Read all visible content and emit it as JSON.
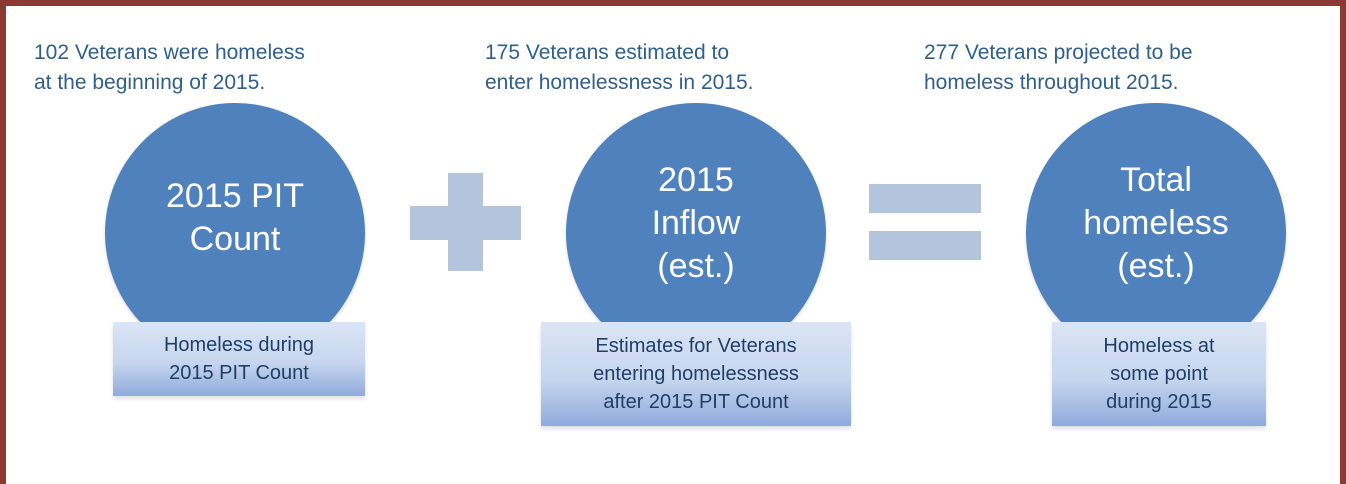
{
  "columns": [
    {
      "caption": "102 Veterans were homeless\nat the beginning of 2015.",
      "circle": "2015 PIT\nCount",
      "box": "Homeless during\n2015 PIT Count"
    },
    {
      "caption": "175 Veterans estimated to\nenter homelessness in 2015.",
      "circle": "2015\nInflow\n(est.)",
      "box": "Estimates for Veterans\nentering homelessness\nafter 2015 PIT Count"
    },
    {
      "caption": "277 Veterans projected to be\nhomeless throughout 2015.",
      "circle": "Total\nhomeless\n(est.)",
      "box": "Homeless at\nsome point\nduring 2015"
    }
  ],
  "colors": {
    "frame": "#8b3a34",
    "caption_text": "#2e5f8f",
    "circle_fill": "#4f81bd",
    "operator": "#b4c4dd",
    "box_text": "#1f3f67"
  },
  "operators": [
    "plus-icon",
    "equals-icon"
  ]
}
